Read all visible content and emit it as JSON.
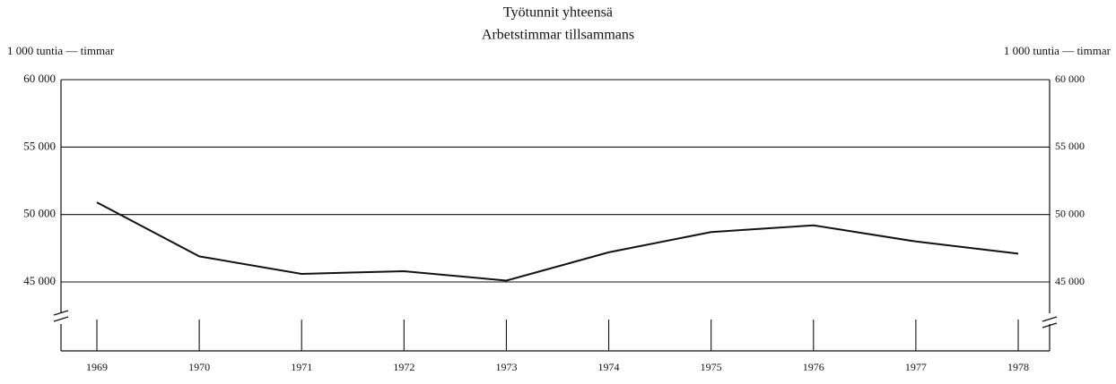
{
  "chart_data": {
    "type": "line",
    "title": "Työtunnit yhteensä",
    "subtitle": "Arbetstimmar tillsammans",
    "y_label": "1 000 tuntia — timmar",
    "categories": [
      "1969",
      "1970",
      "1971",
      "1972",
      "1973",
      "1974",
      "1975",
      "1976",
      "1977",
      "1978"
    ],
    "series": [
      {
        "name": "Työtunnit",
        "color": "#111111",
        "values": [
          50900,
          46900,
          45600,
          45800,
          45100,
          47200,
          48700,
          49200,
          48000,
          47100
        ]
      }
    ],
    "ylim": [
      45000,
      60000
    ],
    "yticks": [
      {
        "value": 45000,
        "label": "45 000"
      },
      {
        "value": 50000,
        "label": "50 000"
      },
      {
        "value": 55000,
        "label": "55 000"
      },
      {
        "value": 60000,
        "label": "60 000"
      }
    ],
    "grid": true
  }
}
